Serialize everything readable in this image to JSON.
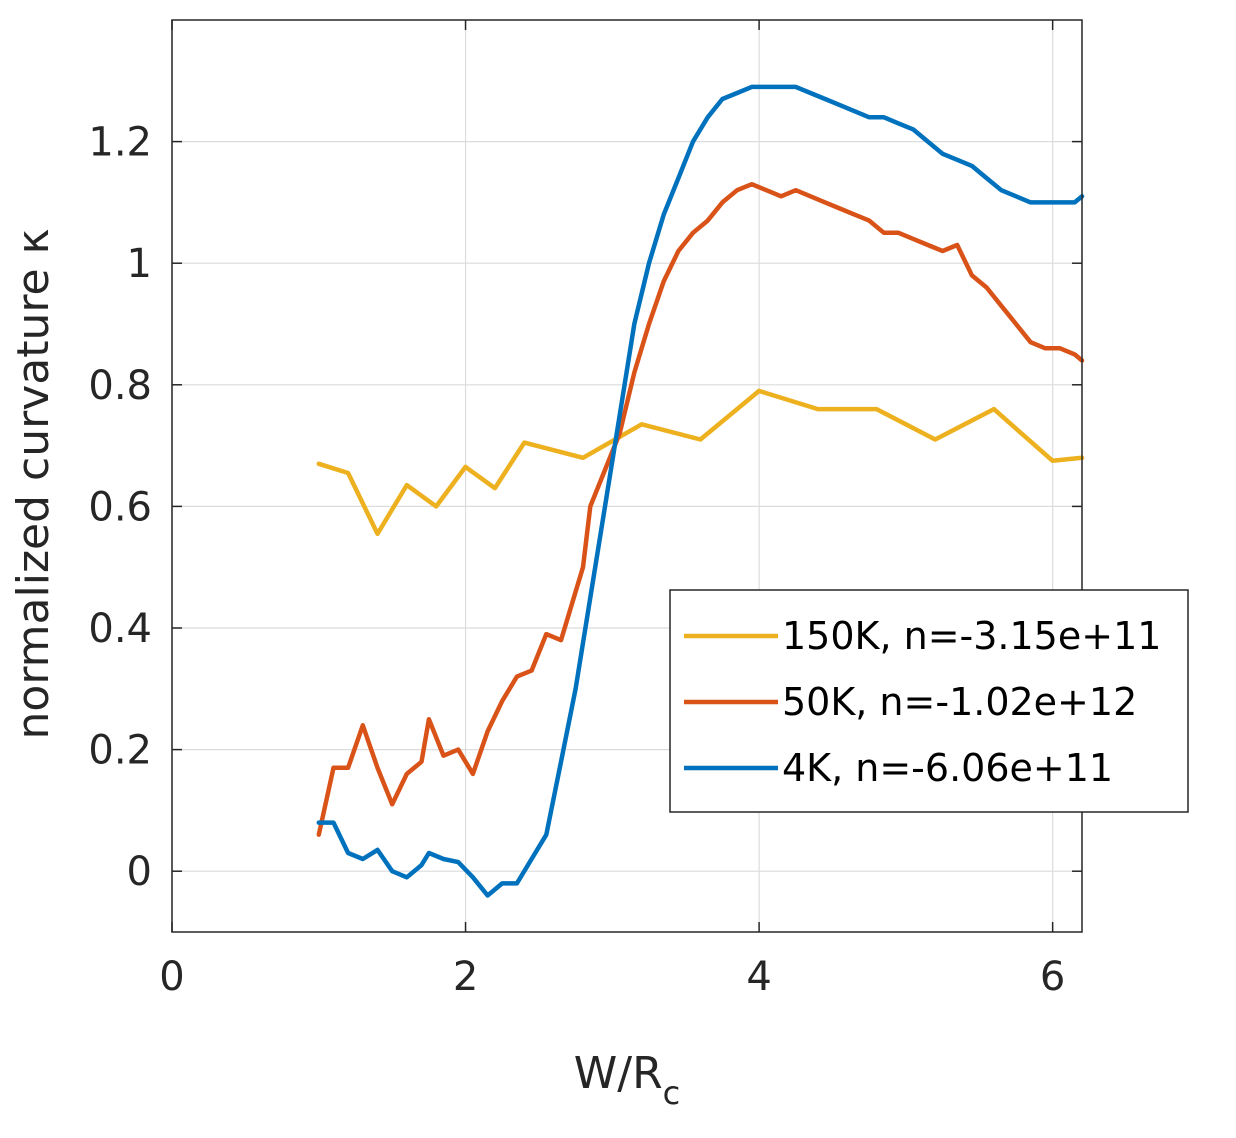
{
  "chart_data": {
    "type": "line",
    "title": "",
    "xlabel": "W/R",
    "xlabel_subscript": "c",
    "ylabel": "normalized curvature κ",
    "xlim": [
      0,
      6.2
    ],
    "ylim": [
      -0.1,
      1.4
    ],
    "xticks": [
      0,
      2,
      4,
      6
    ],
    "yticks": [
      0,
      0.2,
      0.4,
      0.6,
      0.8,
      1,
      1.2
    ],
    "xtick_labels": [
      "0",
      "2",
      "4",
      "6"
    ],
    "ytick_labels": [
      "0",
      "0.2",
      "0.4",
      "0.6",
      "0.8",
      "1",
      "1.2"
    ],
    "grid": true,
    "legend_position": "center-right",
    "series": [
      {
        "name": "150K, n=-3.15e+11",
        "color": "#EDB120",
        "x": [
          1.0,
          1.2,
          1.4,
          1.6,
          1.8,
          2.0,
          2.2,
          2.4,
          2.8,
          3.2,
          3.6,
          4.0,
          4.4,
          4.8,
          5.2,
          5.6,
          6.0,
          6.2
        ],
        "y": [
          0.67,
          0.655,
          0.555,
          0.635,
          0.6,
          0.665,
          0.63,
          0.705,
          0.68,
          0.735,
          0.71,
          0.79,
          0.76,
          0.76,
          0.71,
          0.76,
          0.675,
          0.68
        ]
      },
      {
        "name": "50K, n=-1.02e+12",
        "color": "#D95319",
        "x": [
          1.0,
          1.1,
          1.2,
          1.3,
          1.4,
          1.5,
          1.6,
          1.7,
          1.75,
          1.85,
          1.95,
          2.05,
          2.15,
          2.25,
          2.35,
          2.45,
          2.55,
          2.65,
          2.8,
          2.85,
          2.95,
          3.05,
          3.15,
          3.25,
          3.35,
          3.45,
          3.55,
          3.65,
          3.75,
          3.85,
          3.95,
          4.05,
          4.15,
          4.25,
          4.35,
          4.45,
          4.55,
          4.65,
          4.75,
          4.85,
          4.95,
          5.05,
          5.15,
          5.25,
          5.35,
          5.45,
          5.55,
          5.65,
          5.75,
          5.85,
          5.95,
          6.05,
          6.15,
          6.2
        ],
        "y": [
          0.06,
          0.17,
          0.17,
          0.24,
          0.17,
          0.11,
          0.16,
          0.18,
          0.25,
          0.19,
          0.2,
          0.16,
          0.23,
          0.28,
          0.32,
          0.33,
          0.39,
          0.38,
          0.5,
          0.6,
          0.66,
          0.72,
          0.82,
          0.9,
          0.97,
          1.02,
          1.05,
          1.07,
          1.1,
          1.12,
          1.13,
          1.12,
          1.11,
          1.12,
          1.11,
          1.1,
          1.09,
          1.08,
          1.07,
          1.05,
          1.05,
          1.04,
          1.03,
          1.02,
          1.03,
          0.98,
          0.96,
          0.93,
          0.9,
          0.87,
          0.86,
          0.86,
          0.85,
          0.84
        ]
      },
      {
        "name": "4K, n=-6.06e+11",
        "color": "#0072BD",
        "x": [
          1.0,
          1.1,
          1.2,
          1.3,
          1.4,
          1.5,
          1.6,
          1.7,
          1.75,
          1.85,
          1.95,
          2.05,
          2.15,
          2.25,
          2.35,
          2.45,
          2.55,
          2.65,
          2.75,
          2.85,
          2.95,
          3.05,
          3.15,
          3.25,
          3.35,
          3.45,
          3.55,
          3.65,
          3.75,
          3.85,
          3.95,
          4.05,
          4.15,
          4.25,
          4.35,
          4.45,
          4.55,
          4.65,
          4.75,
          4.85,
          4.95,
          5.05,
          5.15,
          5.25,
          5.35,
          5.45,
          5.55,
          5.65,
          5.75,
          5.85,
          5.95,
          6.05,
          6.15,
          6.2
        ],
        "y": [
          0.08,
          0.08,
          0.03,
          0.02,
          0.035,
          0.0,
          -0.01,
          0.01,
          0.03,
          0.02,
          0.015,
          -0.01,
          -0.04,
          -0.02,
          -0.02,
          0.02,
          0.06,
          0.18,
          0.3,
          0.45,
          0.6,
          0.75,
          0.9,
          1.0,
          1.08,
          1.14,
          1.2,
          1.24,
          1.27,
          1.28,
          1.29,
          1.29,
          1.29,
          1.29,
          1.28,
          1.27,
          1.26,
          1.25,
          1.24,
          1.24,
          1.23,
          1.22,
          1.2,
          1.18,
          1.17,
          1.16,
          1.14,
          1.12,
          1.11,
          1.1,
          1.1,
          1.1,
          1.1,
          1.11
        ]
      }
    ]
  }
}
